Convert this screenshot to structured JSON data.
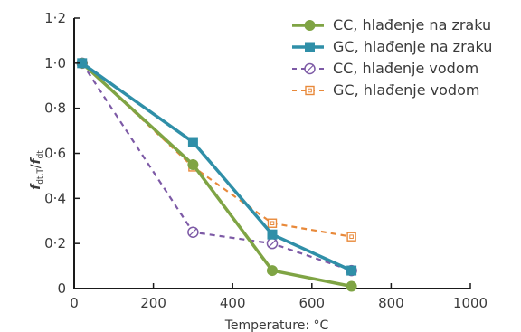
{
  "chart_data": {
    "type": "line",
    "xlabel": "Temperature: °C",
    "ylabel_main": "f",
    "ylabel_main_sub": "dt,T",
    "ylabel_sep": "/",
    "ylabel_den": "f",
    "ylabel_den_sub": "dt",
    "xlim": [
      0,
      1000
    ],
    "ylim": [
      0,
      1.2
    ],
    "xticks": [
      "0",
      "200",
      "400",
      "600",
      "800",
      "1000"
    ],
    "yticks": [
      "0",
      "0·2",
      "0·4",
      "0·6",
      "0·8",
      "1·0",
      "1·2"
    ],
    "grid": false,
    "legend_position": "top-right",
    "series": [
      {
        "name": "CC, hlađenje na zraku",
        "color": "#7fa444",
        "style": "solid",
        "marker": "circle-filled",
        "x": [
          20,
          300,
          500,
          700
        ],
        "y": [
          1.0,
          0.55,
          0.08,
          0.01
        ]
      },
      {
        "name": "GC, hlađenje na zraku",
        "color": "#2f8fa8",
        "style": "solid",
        "marker": "square-filled",
        "x": [
          20,
          300,
          500,
          700
        ],
        "y": [
          1.0,
          0.65,
          0.24,
          0.08
        ]
      },
      {
        "name": "CC, hlađenje vodom",
        "color": "#7d5aa6",
        "style": "dashed",
        "marker": "circle-open",
        "x": [
          20,
          300,
          500,
          700
        ],
        "y": [
          1.0,
          0.25,
          0.2,
          0.08
        ]
      },
      {
        "name": "GC, hlađenje vodom",
        "color": "#e8893a",
        "style": "dashed",
        "marker": "square-open",
        "x": [
          20,
          300,
          500,
          700
        ],
        "y": [
          1.0,
          0.54,
          0.29,
          0.23
        ]
      }
    ]
  }
}
